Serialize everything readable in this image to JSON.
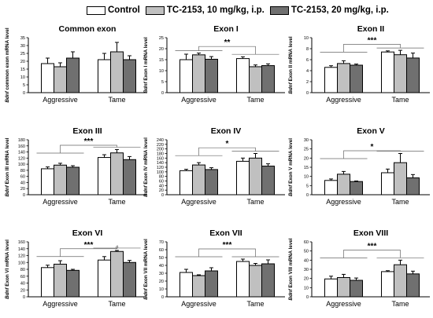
{
  "legend": {
    "items": [
      {
        "label": "Control",
        "color": "#ffffff"
      },
      {
        "label": "TC-2153, 10 mg/kg, i.p.",
        "color": "#c0c0c0"
      },
      {
        "label": "TC-2153, 20 mg/kg, i.p.",
        "color": "#707070"
      }
    ]
  },
  "chart_data": [
    {
      "type": "bar",
      "title": "Common exon",
      "ylabel_italic": "Bdnf",
      "ylabel": " common exon mRNA level",
      "categories": [
        "Aggressive",
        "Tame"
      ],
      "ylim": [
        0,
        35
      ],
      "yticks": [
        0,
        5,
        10,
        15,
        20,
        25,
        30,
        35
      ],
      "series": [
        {
          "name": "Control",
          "values": [
            18.5,
            21
          ],
          "errors": [
            3.5,
            4
          ]
        },
        {
          "name": "TC-2153, 10 mg/kg, i.p.",
          "values": [
            16.5,
            26
          ],
          "errors": [
            2.5,
            6
          ]
        },
        {
          "name": "TC-2153, 20 mg/kg, i.p.",
          "values": [
            22,
            21
          ],
          "errors": [
            4,
            2.5
          ]
        }
      ],
      "significance": []
    },
    {
      "type": "bar",
      "title": "Exon I",
      "ylabel_italic": "Bdnf",
      "ylabel": " Exon I mRNA level",
      "categories": [
        "Aggressive",
        "Tame"
      ],
      "ylim": [
        0,
        25
      ],
      "yticks": [
        0,
        5,
        10,
        15,
        20,
        25
      ],
      "series": [
        {
          "name": "Control",
          "values": [
            15,
            15.5
          ],
          "errors": [
            2.5,
            0.8
          ]
        },
        {
          "name": "TC-2153, 10 mg/kg, i.p.",
          "values": [
            17.2,
            11.8
          ],
          "errors": [
            0.8,
            0.8
          ]
        },
        {
          "name": "TC-2153, 20 mg/kg, i.p.",
          "values": [
            15.2,
            12.3
          ],
          "errors": [
            1.2,
            0.8
          ]
        }
      ],
      "significance": [
        {
          "label": "**",
          "y": 21
        }
      ]
    },
    {
      "type": "bar",
      "title": "Exon II",
      "ylabel_italic": "Bdnf",
      "ylabel": " Exon II mRNA level",
      "categories": [
        "Aggressive",
        "Tame"
      ],
      "ylim": [
        0,
        10
      ],
      "yticks": [
        0,
        2,
        4,
        6,
        8,
        10
      ],
      "series": [
        {
          "name": "Control",
          "values": [
            4.6,
            7.4
          ],
          "errors": [
            0.3,
            0.2
          ]
        },
        {
          "name": "TC-2153, 10 mg/kg, i.p.",
          "values": [
            5.3,
            6.9
          ],
          "errors": [
            0.5,
            0.8
          ]
        },
        {
          "name": "TC-2153, 20 mg/kg, i.p.",
          "values": [
            5.0,
            6.3
          ],
          "errors": [
            0.2,
            0.9
          ]
        }
      ],
      "significance": [
        {
          "label": "***",
          "y": 8.8
        }
      ]
    },
    {
      "type": "bar",
      "title": "Exon III",
      "ylabel_italic": "Bdnf",
      "ylabel": " Exon III mRNA level",
      "categories": [
        "Aggressive",
        "Tame"
      ],
      "ylim": [
        0,
        180
      ],
      "yticks": [
        0,
        20,
        40,
        60,
        80,
        100,
        120,
        140,
        160,
        180
      ],
      "series": [
        {
          "name": "Control",
          "values": [
            85,
            122
          ],
          "errors": [
            6,
            9
          ]
        },
        {
          "name": "TC-2153, 10 mg/kg, i.p.",
          "values": [
            97,
            137
          ],
          "errors": [
            6,
            11
          ]
        },
        {
          "name": "TC-2153, 20 mg/kg, i.p.",
          "values": [
            90,
            115
          ],
          "errors": [
            5,
            10
          ]
        }
      ],
      "significance": [
        {
          "label": "***",
          "y": 162
        }
      ]
    },
    {
      "type": "bar",
      "title": "Exon IV",
      "ylabel_italic": "Bdnf",
      "ylabel": " Exon IV mRNA level",
      "categories": [
        "Aggressive",
        "Tame"
      ],
      "ylim": [
        0,
        240
      ],
      "yticks": [
        0,
        20,
        40,
        60,
        80,
        100,
        120,
        140,
        160,
        180,
        200,
        220,
        240
      ],
      "series": [
        {
          "name": "Control",
          "values": [
            105,
            146
          ],
          "errors": [
            6,
            14
          ]
        },
        {
          "name": "TC-2153, 10 mg/kg, i.p.",
          "values": [
            130,
            160
          ],
          "errors": [
            10,
            20
          ]
        },
        {
          "name": "TC-2153, 20 mg/kg, i.p.",
          "values": [
            110,
            125
          ],
          "errors": [
            8,
            10
          ]
        }
      ],
      "significance": [
        {
          "label": "*",
          "y": 205
        }
      ]
    },
    {
      "type": "bar",
      "title": "Exon V",
      "ylabel_italic": "Bdnf",
      "ylabel": " Exon V mRNA level",
      "categories": [
        "Aggressive",
        "Tame"
      ],
      "ylim": [
        0,
        30
      ],
      "yticks": [
        0,
        5,
        10,
        15,
        20,
        25,
        30
      ],
      "series": [
        {
          "name": "Control",
          "values": [
            7.8,
            12
          ],
          "errors": [
            0.8,
            2
          ]
        },
        {
          "name": "TC-2153, 10 mg/kg, i.p.",
          "values": [
            11.2,
            17.5
          ],
          "errors": [
            1.5,
            5
          ]
        },
        {
          "name": "TC-2153, 20 mg/kg, i.p.",
          "values": [
            7.2,
            9.2
          ],
          "errors": [
            0.3,
            1.8
          ]
        }
      ],
      "significance": [
        {
          "label": "*",
          "y": 24
        }
      ]
    },
    {
      "type": "bar",
      "title": "Exon VI",
      "ylabel_italic": "Bdnf",
      "ylabel": " Exon VI mRNA level",
      "categories": [
        "Aggressive",
        "Tame"
      ],
      "ylim": [
        0,
        160
      ],
      "yticks": [
        0,
        20,
        40,
        60,
        80,
        100,
        120,
        140,
        160
      ],
      "series": [
        {
          "name": "Control",
          "values": [
            85,
            107
          ],
          "errors": [
            7,
            10
          ]
        },
        {
          "name": "TC-2153, 10 mg/kg, i.p.",
          "values": [
            95,
            132
          ],
          "errors": [
            10,
            3
          ]
        },
        {
          "name": "TC-2153, 20 mg/kg, i.p.",
          "values": [
            77,
            100
          ],
          "errors": [
            3,
            6
          ]
        }
      ],
      "markers": [
        {
          "label": "#",
          "category": 1,
          "series": 1
        }
      ],
      "significance": [
        {
          "label": "***",
          "y": 140
        }
      ]
    },
    {
      "type": "bar",
      "title": "Exon VII",
      "ylabel_italic": "Bdnf",
      "ylabel": " Exon VII mRNA level",
      "categories": [
        "Aggressive",
        "Tame"
      ],
      "ylim": [
        0,
        70
      ],
      "yticks": [
        0,
        10,
        20,
        30,
        40,
        50,
        60,
        70
      ],
      "series": [
        {
          "name": "Control",
          "values": [
            31,
            45
          ],
          "errors": [
            4,
            3
          ]
        },
        {
          "name": "TC-2153, 10 mg/kg, i.p.",
          "values": [
            27,
            40
          ],
          "errors": [
            1,
            2.5
          ]
        },
        {
          "name": "TC-2153, 20 mg/kg, i.p.",
          "values": [
            33,
            42
          ],
          "errors": [
            4,
            5
          ]
        }
      ],
      "significance": [
        {
          "label": "***",
          "y": 61
        }
      ]
    },
    {
      "type": "bar",
      "title": "Exon VIII",
      "ylabel_italic": "Bdnf",
      "ylabel": " Exon VIII mRNA level",
      "categories": [
        "Aggressive",
        "Tame"
      ],
      "ylim": [
        0,
        60
      ],
      "yticks": [
        0,
        10,
        20,
        30,
        40,
        50,
        60
      ],
      "series": [
        {
          "name": "Control",
          "values": [
            19.5,
            27.5
          ],
          "errors": [
            3,
            1
          ]
        },
        {
          "name": "TC-2153, 10 mg/kg, i.p.",
          "values": [
            21,
            35
          ],
          "errors": [
            3.5,
            5
          ]
        },
        {
          "name": "TC-2153, 20 mg/kg, i.p.",
          "values": [
            18,
            25
          ],
          "errors": [
            2.5,
            3
          ]
        }
      ],
      "significance": [
        {
          "label": "***",
          "y": 51
        }
      ]
    }
  ]
}
